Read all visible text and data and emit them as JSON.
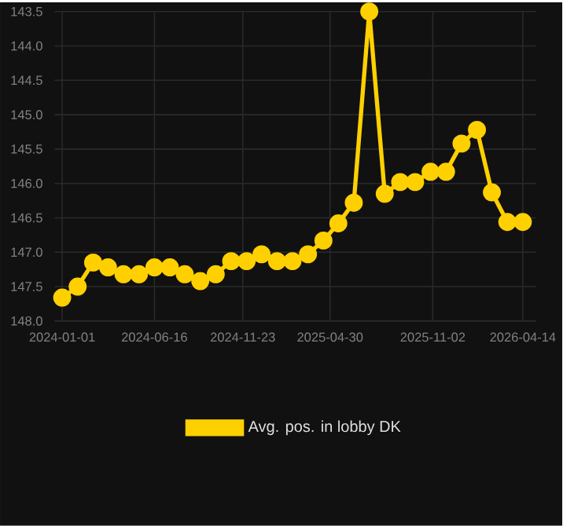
{
  "chart_data": {
    "type": "line",
    "x": [
      "2024-01-01",
      "2024-01-29",
      "2024-02-26",
      "2024-03-24",
      "2024-04-21",
      "2024-05-19",
      "2024-06-16",
      "2024-07-14",
      "2024-08-10",
      "2024-09-07",
      "2024-10-05",
      "2024-11-02",
      "2024-11-30",
      "2024-12-27",
      "2025-01-24",
      "2025-02-21",
      "2025-03-21",
      "2025-04-18",
      "2025-05-15",
      "2025-06-12",
      "2025-07-10",
      "2025-08-07",
      "2025-09-04",
      "2025-10-01",
      "2025-10-29",
      "2025-11-26",
      "2025-12-24",
      "2026-01-21",
      "2026-02-17",
      "2026-03-17",
      "2026-04-14"
    ],
    "series": [
      {
        "name": "Avg. pos. in lobby DK",
        "color": "#ffd000",
        "values": [
          147.66,
          147.5,
          147.15,
          147.22,
          147.32,
          147.32,
          147.22,
          147.22,
          147.32,
          147.42,
          147.32,
          147.13,
          147.13,
          147.03,
          147.13,
          147.13,
          147.03,
          146.83,
          146.58,
          146.28,
          143.5,
          146.15,
          145.98,
          145.98,
          145.83,
          145.83,
          145.42,
          145.22,
          146.13,
          146.56,
          146.56
        ]
      }
    ],
    "xlim": [
      "2023-12-18",
      "2026-05-08"
    ],
    "xticks": [
      "2024-01-01",
      "2024-06-16",
      "2024-11-23",
      "2025-04-30",
      "2025-11-02",
      "2026-04-14"
    ],
    "ylim": [
      148.0,
      143.5
    ],
    "yticks": [
      {
        "value": 143.5,
        "label": "143.5"
      },
      {
        "value": 144,
        "label": "144.0"
      },
      {
        "value": 144.5,
        "label": "144.5"
      },
      {
        "value": 145,
        "label": "145.0"
      },
      {
        "value": 145.5,
        "label": "145.5"
      },
      {
        "value": 146,
        "label": "146.0"
      },
      {
        "value": 146.5,
        "label": "146.5"
      },
      {
        "value": 147,
        "label": "147.0"
      },
      {
        "value": 147.5,
        "label": "147.5"
      },
      {
        "value": 148,
        "label": "148.0"
      }
    ],
    "grid": true,
    "legend": "bottom",
    "marker": "circle",
    "line_style": "solid"
  }
}
